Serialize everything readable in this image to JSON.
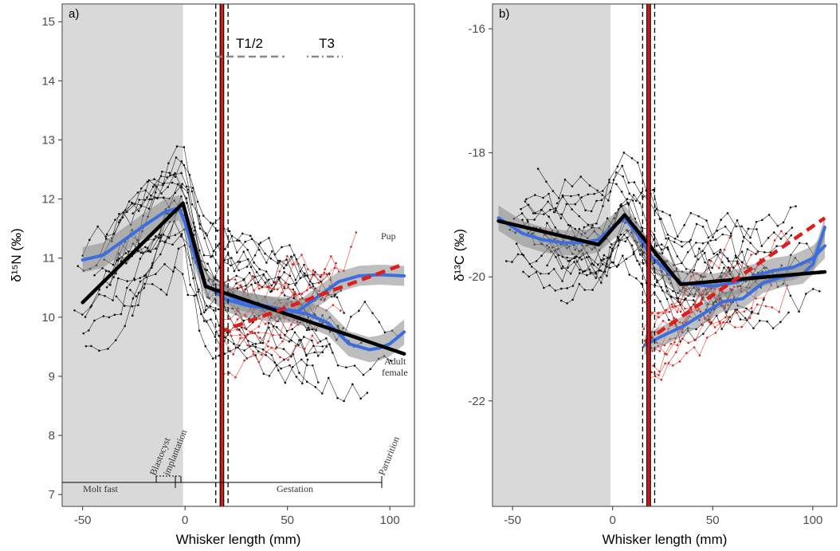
{
  "chart_data": [
    {
      "type": "line",
      "panel_label": "a)",
      "xlabel": "Whisker length (mm)",
      "ylabel": "δ¹⁵N (‰)",
      "xlim": [
        -60,
        112
      ],
      "ylim": [
        6.8,
        15.3
      ],
      "xticks": [
        -50,
        0,
        50,
        100
      ],
      "yticks": [
        7,
        8,
        9,
        10,
        11,
        12,
        13,
        14,
        15
      ],
      "shaded_region_x": [
        -60,
        -1
      ],
      "vlines": {
        "black_dashed": [
          15,
          21
        ],
        "red": [
          18
        ]
      },
      "segmented_fit_adult": {
        "x": [
          -50,
          -1,
          10,
          107
        ],
        "y": [
          10.25,
          11.93,
          10.52,
          9.38
        ]
      },
      "pup_linear_fit": {
        "x": [
          17,
          107
        ],
        "y": [
          9.75,
          10.9
        ]
      },
      "loess_adult": {
        "x": [
          -50,
          -40,
          -30,
          -20,
          -10,
          -3,
          0,
          5,
          10,
          20,
          30,
          40,
          50,
          60,
          70,
          80,
          90,
          95,
          100,
          107
        ],
        "y": [
          10.97,
          11.05,
          11.3,
          11.55,
          11.78,
          11.85,
          11.6,
          11.0,
          10.55,
          10.3,
          10.2,
          10.15,
          10.12,
          10.05,
          9.9,
          9.55,
          9.45,
          9.48,
          9.55,
          9.75
        ]
      },
      "loess_pup": {
        "x": [
          17,
          25,
          35,
          45,
          55,
          65,
          75,
          85,
          95,
          107
        ],
        "y": [
          10.45,
          10.3,
          10.22,
          10.15,
          10.1,
          10.35,
          10.6,
          10.7,
          10.72,
          10.7
        ]
      },
      "annotations": {
        "pup": "Pup",
        "adult_female_1": "Adult",
        "adult_female_2": "female",
        "t12": "T1/2",
        "t3": "T3",
        "blastocyst_1": "Blastocyst",
        "blastocyst_2": "implantation",
        "molt_fast": "Molt fast",
        "gestation": "Gestation",
        "parturition": "Parturition"
      }
    },
    {
      "type": "line",
      "panel_label": "b)",
      "xlabel": "Whisker length (mm)",
      "ylabel": "δ¹³C (‰)",
      "xlim": [
        -60,
        112
      ],
      "ylim": [
        -23.7,
        -15.6
      ],
      "xticks": [
        -50,
        0,
        50,
        100
      ],
      "yticks": [
        -22,
        -20,
        -18,
        -16
      ],
      "shaded_region_x": [
        -60,
        -1
      ],
      "vlines": {
        "black_dashed": [
          15,
          21
        ],
        "red": [
          18
        ]
      },
      "segmented_fit_adult": {
        "x": [
          -57,
          -7,
          6,
          34,
          106
        ],
        "y": [
          -19.1,
          -19.48,
          -19.0,
          -20.12,
          -19.92
        ]
      },
      "pup_linear_fit": {
        "x": [
          16,
          106
        ],
        "y": [
          -21.05,
          -19.05
        ]
      },
      "loess_adult": {
        "x": [
          -57,
          -45,
          -35,
          -25,
          -15,
          -7,
          0,
          6,
          12,
          20,
          34,
          50,
          60,
          70,
          80,
          90,
          100,
          106
        ],
        "y": [
          -19.05,
          -19.3,
          -19.4,
          -19.45,
          -19.45,
          -19.4,
          -19.2,
          -19.05,
          -19.3,
          -19.7,
          -20.1,
          -20.15,
          -20.1,
          -20.0,
          -19.9,
          -19.85,
          -19.7,
          -19.5
        ]
      },
      "loess_pup": {
        "x": [
          16,
          25,
          35,
          45,
          55,
          65,
          75,
          85,
          95,
          100,
          106
        ],
        "y": [
          -21.1,
          -20.95,
          -20.8,
          -20.6,
          -20.4,
          -20.35,
          -20.1,
          -20.0,
          -19.95,
          -19.8,
          -19.2
        ]
      }
    }
  ]
}
